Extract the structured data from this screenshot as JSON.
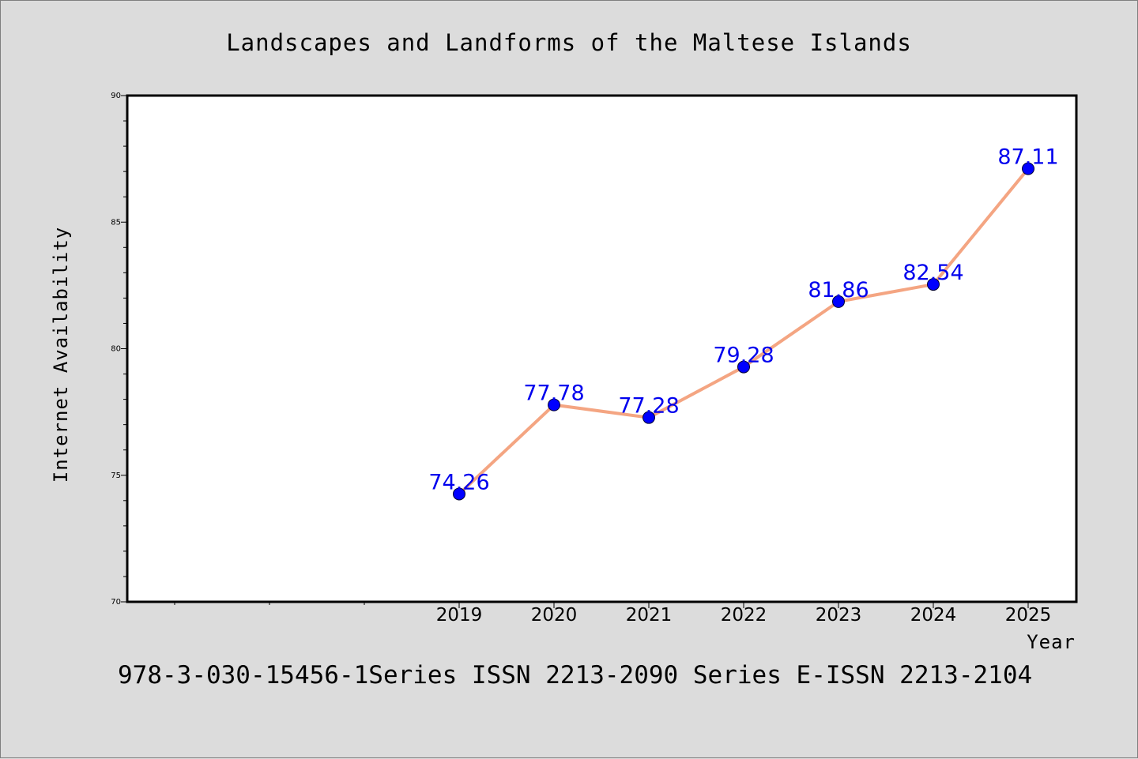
{
  "chart_data": {
    "type": "line",
    "title": "Landscapes and Landforms of the Maltese Islands",
    "xlabel": "Year",
    "ylabel": "Internet Availability",
    "x": [
      "2019",
      "2020",
      "2021",
      "2022",
      "2023",
      "2024",
      "2025"
    ],
    "series": [
      {
        "values": [
          74.26,
          77.78,
          77.28,
          79.28,
          81.86,
          82.54,
          87.11
        ],
        "line_color": "#f4a582",
        "marker_color": "#0000ff"
      }
    ],
    "data_labels": [
      "74.26",
      "77.78",
      "77.28",
      "79.28",
      "81.86",
      "82.54",
      "87.11"
    ],
    "ylim": [
      70,
      90
    ],
    "y_ticks": [
      "70",
      "75",
      "80",
      "85",
      "90"
    ],
    "label_color": "#0000ee",
    "grid": false
  },
  "footer": {
    "text": "978-3-030-15456-1Series ISSN 2213-2090 Series E-ISSN 2213-2104"
  }
}
